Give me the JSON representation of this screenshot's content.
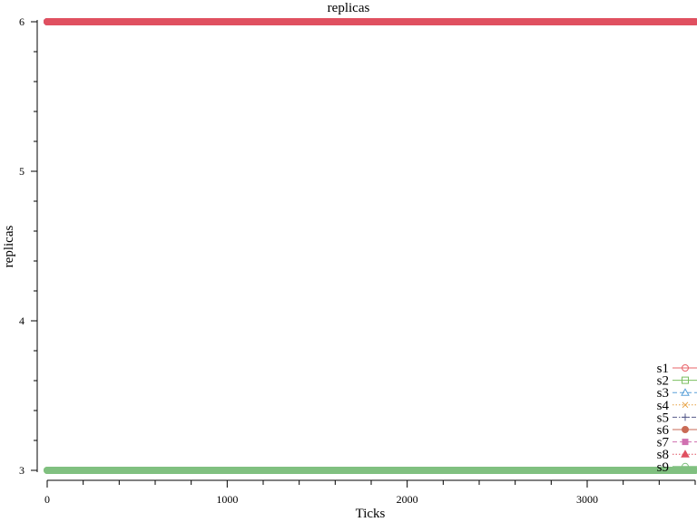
{
  "chart_data": {
    "type": "line",
    "title": "replicas",
    "xlabel": "Ticks",
    "ylabel": "replicas",
    "xlim": [
      0,
      3600
    ],
    "ylim": [
      3,
      6
    ],
    "xticks": [
      0,
      1000,
      2000,
      3000
    ],
    "yticks": [
      3,
      4,
      5,
      6
    ],
    "grid": false,
    "legend_position": "bottom-right",
    "series": [
      {
        "name": "s1",
        "color": "#e8636a",
        "marker": "circle-open",
        "dash": "solid",
        "x": [
          0,
          3600
        ],
        "y": [
          6,
          6
        ]
      },
      {
        "name": "s2",
        "color": "#7bbf60",
        "marker": "square-open",
        "dash": "solid",
        "x": [
          0,
          3600
        ],
        "y": [
          3,
          3
        ]
      },
      {
        "name": "s3",
        "color": "#5aa0d8",
        "marker": "triangle-open",
        "dash": "dash",
        "x": [
          0,
          3600
        ],
        "y": [
          6,
          6
        ]
      },
      {
        "name": "s4",
        "color": "#e6a040",
        "marker": "x",
        "dash": "dot",
        "x": [
          0,
          3600
        ],
        "y": [
          6,
          6
        ]
      },
      {
        "name": "s5",
        "color": "#555a8a",
        "marker": "plus",
        "dash": "dashdot",
        "x": [
          0,
          3600
        ],
        "y": [
          6,
          6
        ]
      },
      {
        "name": "s6",
        "color": "#c96a55",
        "marker": "circle-filled",
        "dash": "solid",
        "x": [
          0,
          3600
        ],
        "y": [
          6,
          6
        ]
      },
      {
        "name": "s7",
        "color": "#d070b0",
        "marker": "square-filled",
        "dash": "dash",
        "x": [
          0,
          3600
        ],
        "y": [
          6,
          6
        ]
      },
      {
        "name": "s8",
        "color": "#e05060",
        "marker": "triangle-filled",
        "dash": "dot",
        "x": [
          0,
          3600
        ],
        "y": [
          6,
          6
        ]
      },
      {
        "name": "s9",
        "color": "#80c080",
        "marker": "circle-open",
        "dash": "solid",
        "x": [
          0,
          3600
        ],
        "y": [
          3,
          3
        ]
      }
    ]
  }
}
